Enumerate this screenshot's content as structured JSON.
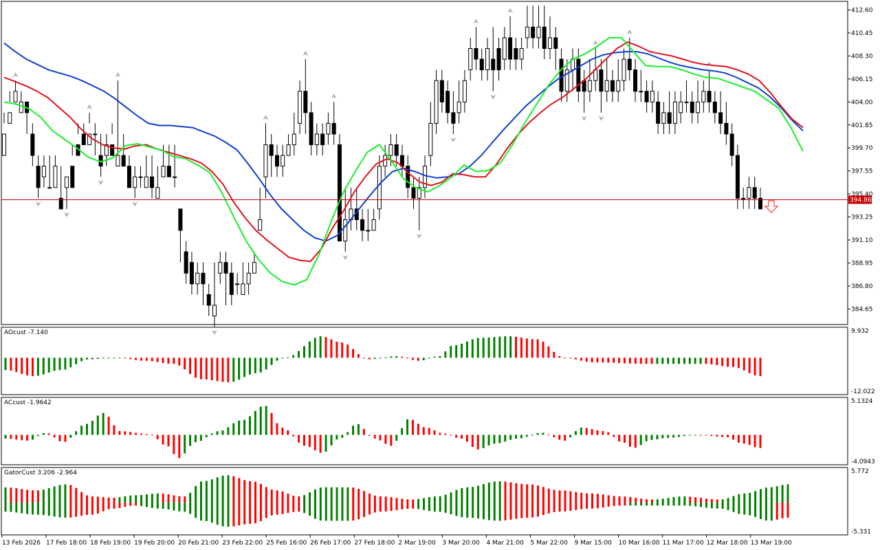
{
  "chart_data": {
    "type": "candlestick",
    "main": {
      "y_ticks": [
        "412.60",
        "410.45",
        "408.30",
        "406.15",
        "404.00",
        "401.85",
        "399.70",
        "397.55",
        "395.40",
        "393.25",
        "391.10",
        "388.95",
        "386.80",
        "384.65"
      ],
      "current_price": "394.86",
      "signal_arrow": "down-arrow",
      "candles": [
        [
          399,
          401,
          403,
          402
        ],
        [
          402,
          403,
          405,
          404
        ],
        [
          404,
          405,
          406,
          405
        ],
        [
          403,
          404,
          405,
          403
        ],
        [
          404,
          403,
          404,
          401
        ],
        [
          401,
          399,
          402,
          398
        ],
        [
          398,
          396,
          399,
          395
        ],
        [
          397,
          398,
          399,
          396
        ],
        [
          396,
          396,
          399,
          396
        ],
        [
          396,
          398,
          399,
          396
        ],
        [
          395,
          394,
          398,
          395
        ],
        [
          396,
          397,
          397,
          394
        ],
        [
          398,
          396,
          400,
          399
        ],
        [
          400,
          399,
          402,
          401
        ],
        [
          401,
          400,
          402,
          400
        ],
        [
          400,
          401,
          403,
          402
        ],
        [
          401,
          401,
          402,
          399
        ],
        [
          399,
          398,
          401,
          397
        ],
        [
          399,
          400,
          401,
          398
        ],
        [
          400,
          399,
          402,
          401
        ],
        [
          398,
          399,
          406,
          399
        ],
        [
          399,
          398,
          401,
          398
        ],
        [
          398,
          396,
          399,
          397
        ],
        [
          396,
          397,
          398,
          395
        ],
        [
          397,
          397,
          398,
          396
        ],
        [
          396,
          397,
          399,
          397
        ],
        [
          397,
          396,
          399,
          395
        ],
        [
          395,
          396,
          398,
          395
        ],
        [
          397,
          398,
          400,
          397
        ],
        [
          398,
          397,
          400,
          397
        ],
        [
          397,
          397,
          400,
          396
        ],
        [
          394,
          392,
          394,
          389
        ],
        [
          390,
          388,
          391,
          387
        ],
        [
          389,
          387,
          390,
          386
        ],
        [
          387,
          388,
          389,
          386
        ],
        [
          388,
          387,
          389,
          385
        ],
        [
          386,
          385,
          387,
          384
        ],
        [
          384,
          385,
          389,
          383
        ],
        [
          388,
          389,
          390,
          387
        ],
        [
          389,
          388,
          390,
          385
        ],
        [
          388,
          386,
          389,
          385
        ],
        [
          387,
          387,
          388,
          386
        ],
        [
          386,
          387,
          389,
          386
        ],
        [
          387,
          388,
          389,
          386
        ],
        [
          388,
          389,
          390,
          388
        ],
        [
          392,
          393,
          396,
          392
        ],
        [
          397,
          400,
          402,
          395
        ],
        [
          400,
          399,
          401,
          397
        ],
        [
          399,
          398,
          400,
          397
        ],
        [
          398,
          399,
          400,
          397
        ],
        [
          399,
          400,
          401,
          399
        ],
        [
          400,
          401,
          403,
          399
        ],
        [
          402,
          405,
          406,
          401
        ],
        [
          405,
          403,
          408,
          401
        ],
        [
          403,
          400,
          404,
          399
        ],
        [
          400,
          401,
          402,
          399
        ],
        [
          401,
          400,
          402,
          399
        ],
        [
          401,
          402,
          403,
          400
        ],
        [
          402,
          401,
          404,
          400
        ],
        [
          400,
          391,
          401,
          391
        ],
        [
          391,
          393,
          396,
          390
        ],
        [
          393,
          394,
          396,
          392
        ],
        [
          394,
          393,
          396,
          392
        ],
        [
          393,
          392,
          394,
          391
        ],
        [
          392,
          392,
          394,
          391
        ],
        [
          392,
          393,
          394,
          392
        ],
        [
          394,
          398,
          399,
          393
        ],
        [
          398,
          399,
          400,
          397
        ],
        [
          399,
          400,
          401,
          398
        ],
        [
          400,
          399,
          401,
          398
        ],
        [
          399,
          398,
          400,
          397
        ],
        [
          398,
          396,
          399,
          395
        ],
        [
          396,
          395,
          397,
          394
        ],
        [
          395,
          396,
          397,
          392
        ],
        [
          396,
          398,
          399,
          395
        ],
        [
          399,
          402,
          404,
          398
        ],
        [
          402,
          406,
          407,
          401
        ],
        [
          406,
          404,
          407,
          403
        ],
        [
          405,
          403,
          406,
          402
        ],
        [
          403,
          402,
          405,
          401
        ],
        [
          403,
          404,
          406,
          402
        ],
        [
          404,
          406,
          407,
          403
        ],
        [
          407,
          409,
          410,
          406
        ],
        [
          409,
          408,
          411,
          407
        ],
        [
          408,
          407,
          409,
          406
        ],
        [
          407,
          409,
          410,
          406
        ],
        [
          408,
          407,
          411,
          405
        ],
        [
          409,
          407,
          410,
          406
        ],
        [
          408,
          410,
          411,
          407
        ],
        [
          410,
          408,
          412,
          407
        ],
        [
          409,
          408,
          410,
          407
        ],
        [
          408,
          409,
          410,
          407
        ],
        [
          410,
          411,
          413,
          409
        ],
        [
          411,
          410,
          413,
          409
        ],
        [
          410,
          411,
          413,
          409
        ],
        [
          411,
          409,
          413,
          408
        ],
        [
          409,
          410,
          412,
          408
        ],
        [
          410,
          409,
          411,
          407
        ],
        [
          408,
          405,
          409,
          404
        ],
        [
          405,
          407,
          408,
          404
        ],
        [
          407,
          408,
          409,
          405
        ],
        [
          408,
          405,
          409,
          404
        ],
        [
          406,
          405,
          407,
          403
        ],
        [
          405,
          406,
          408,
          404
        ],
        [
          406,
          407,
          409,
          405
        ],
        [
          407,
          405,
          408,
          403
        ],
        [
          405,
          406,
          408,
          404
        ],
        [
          406,
          405,
          407,
          404
        ],
        [
          405,
          406,
          408,
          404
        ],
        [
          406,
          408,
          409,
          405
        ],
        [
          408,
          407,
          410,
          406
        ],
        [
          407,
          405,
          408,
          404
        ],
        [
          405,
          405,
          407,
          404
        ],
        [
          405,
          404,
          406,
          403
        ],
        [
          404,
          405,
          406,
          403
        ],
        [
          404,
          402,
          405,
          401
        ],
        [
          402,
          403,
          404,
          401
        ],
        [
          403,
          402,
          405,
          401
        ],
        [
          402,
          404,
          405,
          401
        ],
        [
          403,
          404,
          405,
          402
        ],
        [
          404,
          404,
          406,
          403
        ],
        [
          404,
          403,
          405,
          402
        ],
        [
          403,
          404,
          406,
          402
        ],
        [
          404,
          405,
          406,
          403
        ],
        [
          405,
          404,
          407,
          403
        ],
        [
          404,
          403,
          405,
          402
        ],
        [
          403,
          402,
          405,
          401
        ],
        [
          402,
          401,
          404,
          400
        ],
        [
          401,
          399,
          402,
          398
        ],
        [
          399,
          395,
          400,
          394
        ],
        [
          395,
          395,
          396,
          394
        ],
        [
          395,
          396,
          397,
          394
        ],
        [
          396,
          395,
          397,
          394
        ],
        [
          395,
          394,
          396,
          394
        ]
      ],
      "lines": [
        {
          "name": "blue",
          "color": "#0b3fcf",
          "values": [
            409.5,
            408.7,
            408.0,
            407.5,
            407.0,
            406.7,
            406.4,
            406.0,
            405.5,
            405.0,
            404.3,
            403.5,
            402.7,
            402.0,
            401.8,
            401.8,
            401.7,
            401.6,
            401.2,
            400.8,
            400.2,
            399.5,
            398.2,
            396.8,
            395.3,
            394.0,
            393.0,
            392.0,
            391.3,
            391.0,
            391.5,
            392.7,
            394.0,
            395.3,
            396.5,
            397.5,
            397.8,
            397.5,
            397.1,
            396.9,
            397.0,
            397.3,
            398.0,
            399.0,
            400.2,
            401.4,
            402.5,
            403.6,
            404.5,
            405.4,
            406.2,
            406.8,
            407.4,
            408.0,
            408.4,
            408.6,
            408.7,
            408.7,
            408.5,
            408.1,
            407.7,
            407.4,
            407.2,
            407.0,
            406.9,
            406.7,
            406.3,
            405.8,
            405.3,
            404.5,
            403.5,
            402.3,
            401.3
          ]
        },
        {
          "name": "red",
          "color": "#e0101a",
          "values": [
            406.3,
            405.9,
            405.5,
            405.0,
            404.4,
            403.5,
            402.6,
            401.5,
            400.6,
            400.0,
            399.7,
            399.6,
            399.9,
            400.0,
            399.6,
            399.3,
            399.0,
            398.7,
            398.3,
            397.5,
            396.3,
            394.6,
            393.2,
            392.0,
            391.1,
            390.3,
            389.5,
            389.2,
            389.1,
            390.3,
            392.2,
            393.8,
            395.6,
            397.0,
            398.2,
            398.7,
            398.3,
            397.3,
            396.5,
            396.2,
            396.5,
            397.3,
            397.2,
            397.0,
            397.0,
            398.2,
            399.7,
            401.0,
            402.1,
            403.0,
            403.8,
            404.4,
            405.2,
            406.0,
            407.0,
            408.0,
            409.0,
            409.6,
            409.2,
            408.7,
            408.5,
            408.3,
            408.0,
            407.7,
            407.5,
            407.4,
            407.3,
            407.0,
            406.6,
            406.0,
            404.9,
            403.6,
            402.4,
            401.6
          ]
        },
        {
          "name": "green",
          "color": "#18ee2a",
          "values": [
            404.0,
            403.8,
            403.4,
            402.6,
            401.3,
            400.5,
            399.7,
            398.8,
            398.4,
            398.8,
            399.9,
            400.1,
            399.8,
            399.5,
            398.9,
            398.7,
            398.1,
            397.4,
            395.5,
            393.2,
            391.0,
            389.3,
            388.0,
            387.2,
            386.9,
            387.4,
            389.7,
            392.8,
            395.5,
            397.5,
            399.3,
            400.0,
            398.5,
            396.8,
            396.0,
            395.6,
            396.2,
            397.0,
            398.1,
            397.5,
            397.6,
            398.3,
            400.0,
            402.0,
            403.8,
            405.6,
            407.0,
            408.0,
            408.5,
            409.2,
            410.0,
            410.0,
            408.7,
            407.4,
            407.3,
            407.3,
            407.0,
            406.6,
            406.3,
            406.2,
            405.8,
            405.4,
            405.0,
            404.2,
            403.4,
            401.6,
            399.4
          ]
        }
      ]
    },
    "ao": {
      "title": "AOcust -7.140",
      "y_ticks": [
        "9.932",
        "-12.022"
      ]
    },
    "ac": {
      "title": "ACcust -1.9642",
      "y_ticks": [
        "5.1324",
        "-4.0943"
      ]
    },
    "gator": {
      "title": "GatorCust 3.206 -2.964",
      "y_ticks": [
        "5.772",
        "-5.331"
      ]
    },
    "x_labels": [
      "13 Feb 2026",
      "17 Feb 18:00",
      "18 Feb 19:00",
      "19 Feb 20:00",
      "20 Feb 21:00",
      "23 Feb 22:00",
      "25 Feb 16:00",
      "26 Feb 17:00",
      "27 Feb 18:00",
      "2 Mar 19:00",
      "3 Mar 20:00",
      "4 Mar 21:00",
      "5 Mar 22:00",
      "9 Mar 15:00",
      "10 Mar 16:00",
      "11 Mar 17:00",
      "12 Mar 18:00",
      "13 Mar 19:00"
    ]
  },
  "colors": {
    "up": "#008000",
    "down": "#ff0000",
    "frame": "#000000",
    "hline": "#c80000",
    "arrow": "#ff3b30",
    "fractal": "#b0b0b0"
  }
}
